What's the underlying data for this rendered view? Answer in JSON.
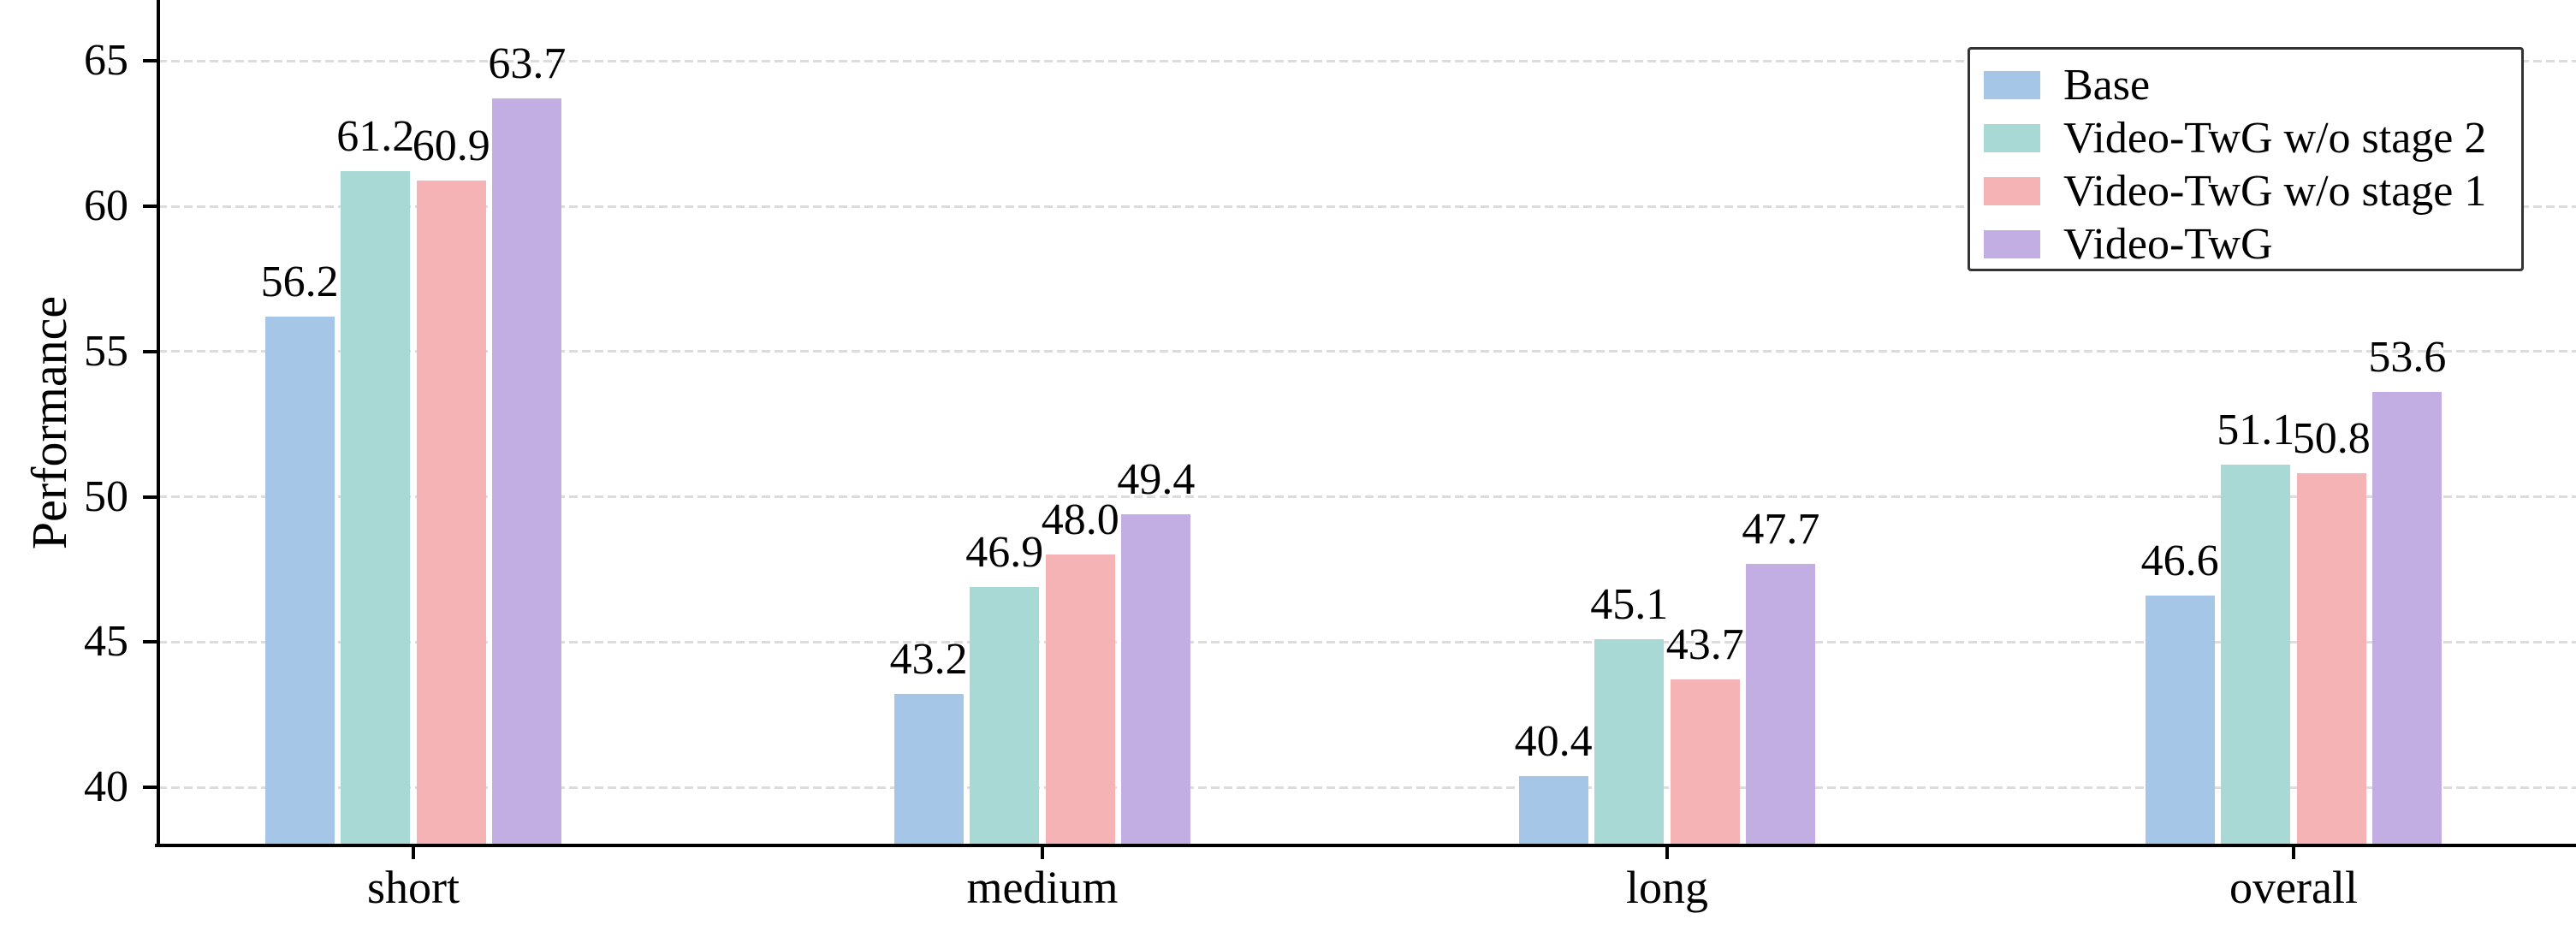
{
  "figure": {
    "background": "#ffffff",
    "text_color": "#000000"
  },
  "chart_data": {
    "type": "bar",
    "title": "",
    "xlabel": "",
    "ylabel": "Performance",
    "categories": [
      "short",
      "medium",
      "long",
      "overall"
    ],
    "series": [
      {
        "name": "Base",
        "color": "#a6c6e7",
        "values": [
          56.2,
          43.2,
          40.4,
          46.6
        ]
      },
      {
        "name": "Video-TwG w/o stage 2",
        "color": "#a9d9d5",
        "values": [
          61.2,
          46.9,
          45.1,
          51.1
        ]
      },
      {
        "name": "Video-TwG w/o stage 1",
        "color": "#f6b3b6",
        "values": [
          60.9,
          48.0,
          43.7,
          50.8
        ]
      },
      {
        "name": "Video-TwG",
        "color": "#c2aee2",
        "values": [
          63.7,
          49.4,
          47.7,
          53.6
        ]
      }
    ],
    "yticks": [
      40,
      45,
      50,
      55,
      60,
      65
    ],
    "ylim": [
      38.0,
      67.1
    ],
    "grid": "dashed-horizontal",
    "legend_position": "upper-right",
    "bar_label_format": "one-decimal",
    "colors": {
      "grid": "#dcdcdc",
      "axis": "#000000",
      "legend_border": "#333333"
    }
  }
}
